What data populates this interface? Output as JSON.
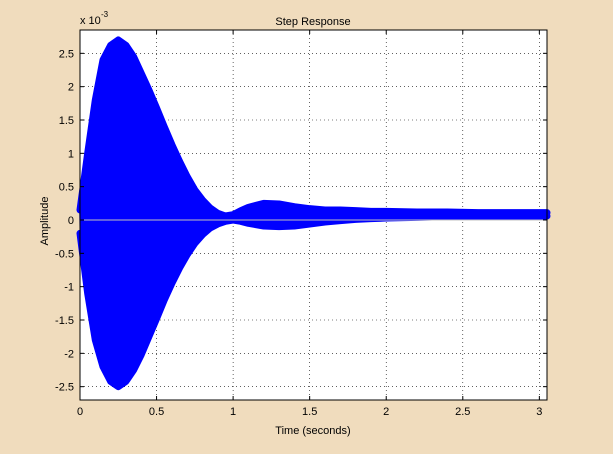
{
  "colors": {
    "figure_background": "#f0dcbd",
    "axes_background": "#ffffff",
    "series": "#0000ff",
    "grid": "#000000"
  },
  "chart_data": {
    "type": "line",
    "title": "Step Response",
    "xlabel": "Time (seconds)",
    "ylabel": "Amplitude",
    "y_exponent_label": "x 10",
    "y_exponent_power": "-3",
    "xlim": [
      0,
      3.05
    ],
    "ylim": [
      -2.7,
      2.85
    ],
    "grid": true,
    "x_ticks": [
      0,
      0.5,
      1,
      1.5,
      2,
      2.5,
      3
    ],
    "x_tick_labels": [
      "0",
      "0.5",
      "1",
      "1.5",
      "2",
      "2.5",
      "3"
    ],
    "y_ticks": [
      -2.5,
      -2,
      -1.5,
      -1,
      -0.5,
      0,
      0.5,
      1,
      1.5,
      2,
      2.5
    ],
    "y_tick_labels": [
      "-2.5",
      "-2",
      "-1.5",
      "-1",
      "-0.5",
      "0",
      "0.5",
      "1",
      "1.5",
      "2",
      "2.5"
    ],
    "series": [
      {
        "color": "#0000ff",
        "style": "dense high-frequency oscillation drawn with thick markers",
        "envelope_upper": [
          [
            0,
            0.15
          ],
          [
            0.05,
            1.0
          ],
          [
            0.1,
            1.8
          ],
          [
            0.15,
            2.4
          ],
          [
            0.2,
            2.62
          ],
          [
            0.25,
            2.7
          ],
          [
            0.3,
            2.62
          ],
          [
            0.35,
            2.45
          ],
          [
            0.4,
            2.2
          ],
          [
            0.45,
            1.95
          ],
          [
            0.5,
            1.68
          ],
          [
            0.55,
            1.4
          ],
          [
            0.6,
            1.13
          ],
          [
            0.65,
            0.88
          ],
          [
            0.7,
            0.65
          ],
          [
            0.75,
            0.45
          ],
          [
            0.8,
            0.3
          ],
          [
            0.85,
            0.18
          ],
          [
            0.9,
            0.1
          ],
          [
            0.95,
            0.06
          ],
          [
            1.0,
            0.08
          ],
          [
            1.05,
            0.14
          ],
          [
            1.1,
            0.19
          ],
          [
            1.2,
            0.25
          ],
          [
            1.3,
            0.24
          ],
          [
            1.4,
            0.2
          ],
          [
            1.5,
            0.17
          ],
          [
            1.6,
            0.15
          ],
          [
            1.7,
            0.15
          ],
          [
            1.8,
            0.14
          ],
          [
            1.9,
            0.13
          ],
          [
            2.0,
            0.13
          ],
          [
            2.2,
            0.12
          ],
          [
            2.4,
            0.12
          ],
          [
            2.6,
            0.11
          ],
          [
            2.8,
            0.11
          ],
          [
            3.0,
            0.11
          ],
          [
            3.05,
            0.11
          ]
        ],
        "envelope_lower": [
          [
            0,
            -0.2
          ],
          [
            0.05,
            -1.1
          ],
          [
            0.1,
            -1.8
          ],
          [
            0.15,
            -2.2
          ],
          [
            0.2,
            -2.42
          ],
          [
            0.25,
            -2.5
          ],
          [
            0.3,
            -2.42
          ],
          [
            0.35,
            -2.25
          ],
          [
            0.4,
            -2.02
          ],
          [
            0.45,
            -1.75
          ],
          [
            0.5,
            -1.48
          ],
          [
            0.55,
            -1.2
          ],
          [
            0.6,
            -0.95
          ],
          [
            0.65,
            -0.72
          ],
          [
            0.7,
            -0.52
          ],
          [
            0.75,
            -0.35
          ],
          [
            0.8,
            -0.22
          ],
          [
            0.85,
            -0.12
          ],
          [
            0.9,
            -0.06
          ],
          [
            0.95,
            -0.02
          ],
          [
            1.0,
            0.0
          ],
          [
            1.05,
            -0.02
          ],
          [
            1.1,
            -0.05
          ],
          [
            1.2,
            -0.09
          ],
          [
            1.3,
            -0.1
          ],
          [
            1.4,
            -0.09
          ],
          [
            1.5,
            -0.06
          ],
          [
            1.6,
            -0.03
          ],
          [
            1.7,
            -0.01
          ],
          [
            1.8,
            0.01
          ],
          [
            1.9,
            0.02
          ],
          [
            2.0,
            0.03
          ],
          [
            2.2,
            0.04
          ],
          [
            2.4,
            0.05
          ],
          [
            2.6,
            0.06
          ],
          [
            2.8,
            0.06
          ],
          [
            3.0,
            0.06
          ],
          [
            3.05,
            0.06
          ]
        ]
      }
    ],
    "reference_line": {
      "y": 0,
      "color": "#c0c0c0"
    }
  }
}
